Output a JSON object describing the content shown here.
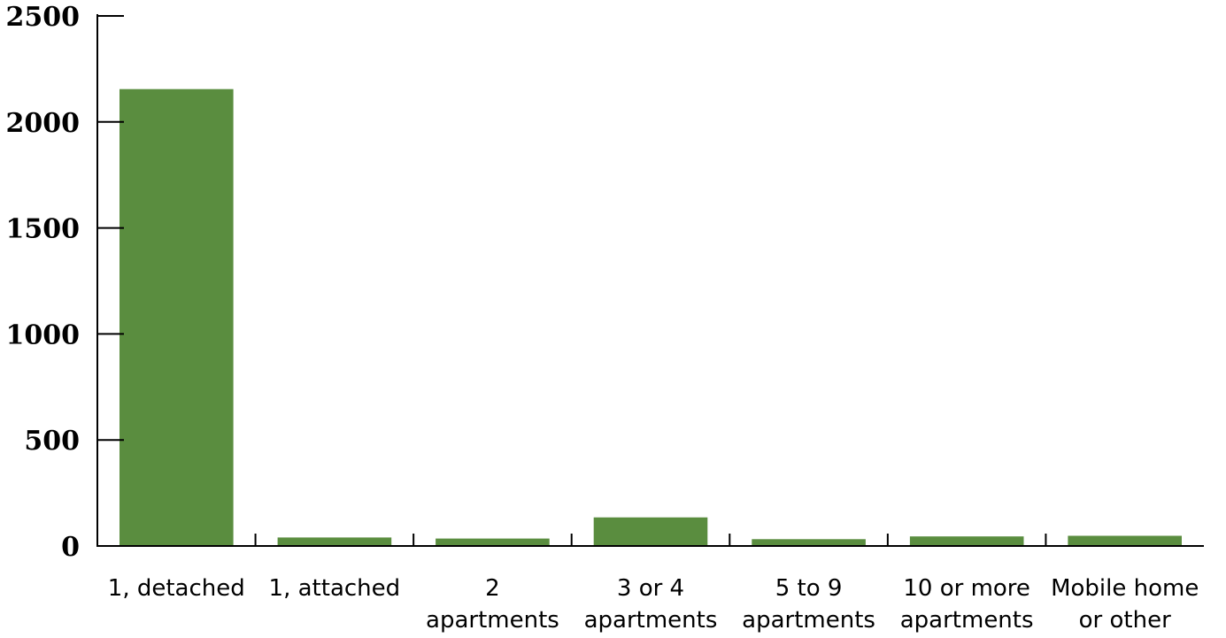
{
  "chart_data": {
    "type": "bar",
    "categories": [
      [
        "1, detached"
      ],
      [
        "1, attached"
      ],
      [
        "2",
        "apartments"
      ],
      [
        "3 or 4",
        "apartments"
      ],
      [
        "5 to 9",
        "apartments"
      ],
      [
        "10 or more",
        "apartments"
      ],
      [
        "Mobile home",
        "or other"
      ]
    ],
    "values": [
      2155,
      40,
      35,
      135,
      32,
      45,
      48
    ],
    "ylim": [
      0,
      2500
    ],
    "yticks": [
      0,
      500,
      1000,
      1500,
      2000,
      2500
    ],
    "ytick_labels": [
      "0",
      "500",
      "1000",
      "1500",
      "2000",
      "2500"
    ],
    "title": "",
    "xlabel": "",
    "ylabel": "",
    "grid": false,
    "legend": "none",
    "bar_color": "#5a8d3f"
  }
}
